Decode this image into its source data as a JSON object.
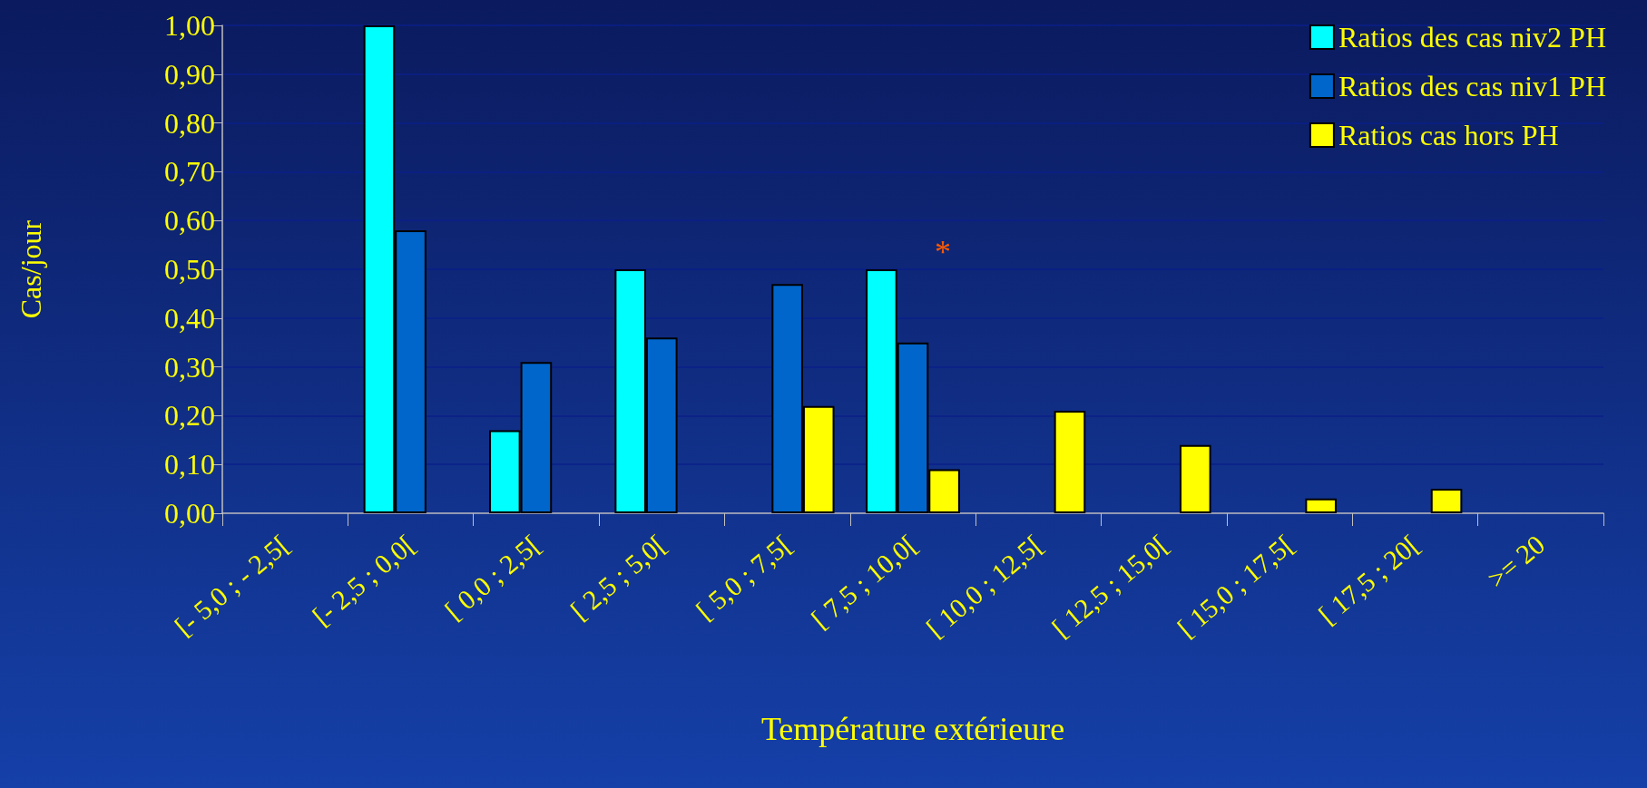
{
  "chart_data": {
    "type": "bar",
    "xlabel": "Température extérieure",
    "ylabel": "Cas/jour",
    "categories": [
      "[- 5,0 ; - 2,5[",
      "[- 2,5 ; 0,0[",
      "[ 0,0 ; 2,5[",
      "[ 2,5 ; 5,0[",
      "[ 5,0 ; 7,5[",
      "[ 7,5 ; 10,0[",
      "[ 10,0 ; 12,5[",
      "[ 12,5 ; 15,0[",
      "[ 15,0 ; 17,5[",
      "[ 17,5 ; 20[",
      ">= 20"
    ],
    "series": [
      {
        "name": "Ratios des cas niv2 PH",
        "color": "#00ffff",
        "values": [
          null,
          1.0,
          0.17,
          0.5,
          null,
          0.5,
          null,
          null,
          null,
          null,
          null
        ]
      },
      {
        "name": "Ratios des cas niv1 PH",
        "color": "#0066cc",
        "values": [
          null,
          0.58,
          0.31,
          0.36,
          0.47,
          0.35,
          null,
          null,
          null,
          null,
          null
        ]
      },
      {
        "name": "Ratios cas hors PH",
        "color": "#ffff00",
        "values": [
          null,
          null,
          null,
          null,
          0.22,
          0.09,
          0.21,
          0.14,
          0.03,
          0.05,
          null
        ]
      }
    ],
    "ylim": [
      0,
      1
    ],
    "yticks": [
      {
        "value": 0,
        "label": "0,00"
      },
      {
        "value": 0.1,
        "label": "0,10"
      },
      {
        "value": 0.2,
        "label": "0,20"
      },
      {
        "value": 0.3,
        "label": "0,30"
      },
      {
        "value": 0.4,
        "label": "0,40"
      },
      {
        "value": 0.5,
        "label": "0,50"
      },
      {
        "value": 0.6,
        "label": "0,60"
      },
      {
        "value": 0.7,
        "label": "0,70"
      },
      {
        "value": 0.8,
        "label": "0,80"
      },
      {
        "value": 0.9,
        "label": "0,90"
      },
      {
        "value": 1,
        "label": "1,00"
      }
    ],
    "grid": "y",
    "legend": "top right",
    "annotations": [
      "*"
    ]
  }
}
